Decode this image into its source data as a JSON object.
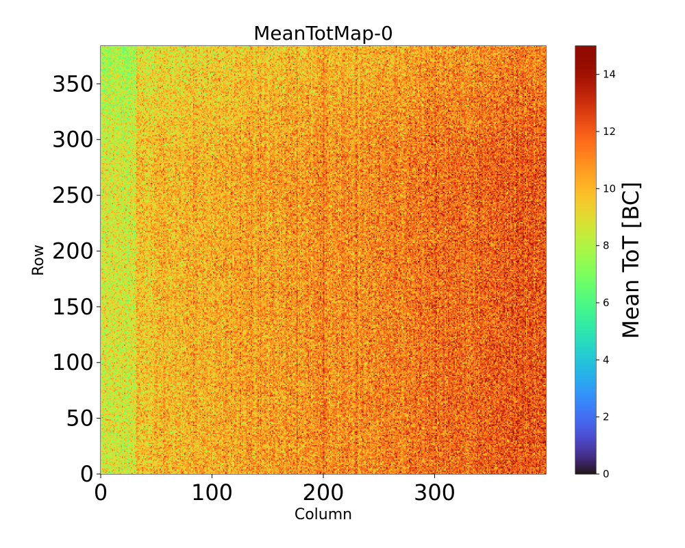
{
  "chart_data": {
    "type": "heatmap",
    "title": "MeanTotMap-0",
    "xlabel": "Column",
    "ylabel": "Row",
    "xlim": [
      0,
      400
    ],
    "ylim": [
      0,
      384
    ],
    "x_ticks": [
      0,
      100,
      200,
      300
    ],
    "y_ticks": [
      0,
      50,
      100,
      150,
      200,
      250,
      300,
      350
    ],
    "grid": false,
    "colormap": "turbo",
    "colorbar": {
      "label": "Mean ToT [BC]",
      "range": [
        0,
        15
      ],
      "ticks": [
        0,
        2,
        4,
        6,
        8,
        10,
        12,
        14
      ]
    },
    "value_summary": {
      "typical_range": [
        8,
        14
      ],
      "low_values_region": "left columns and top rows",
      "high_values_region": "right columns, lower-middle rows"
    }
  }
}
